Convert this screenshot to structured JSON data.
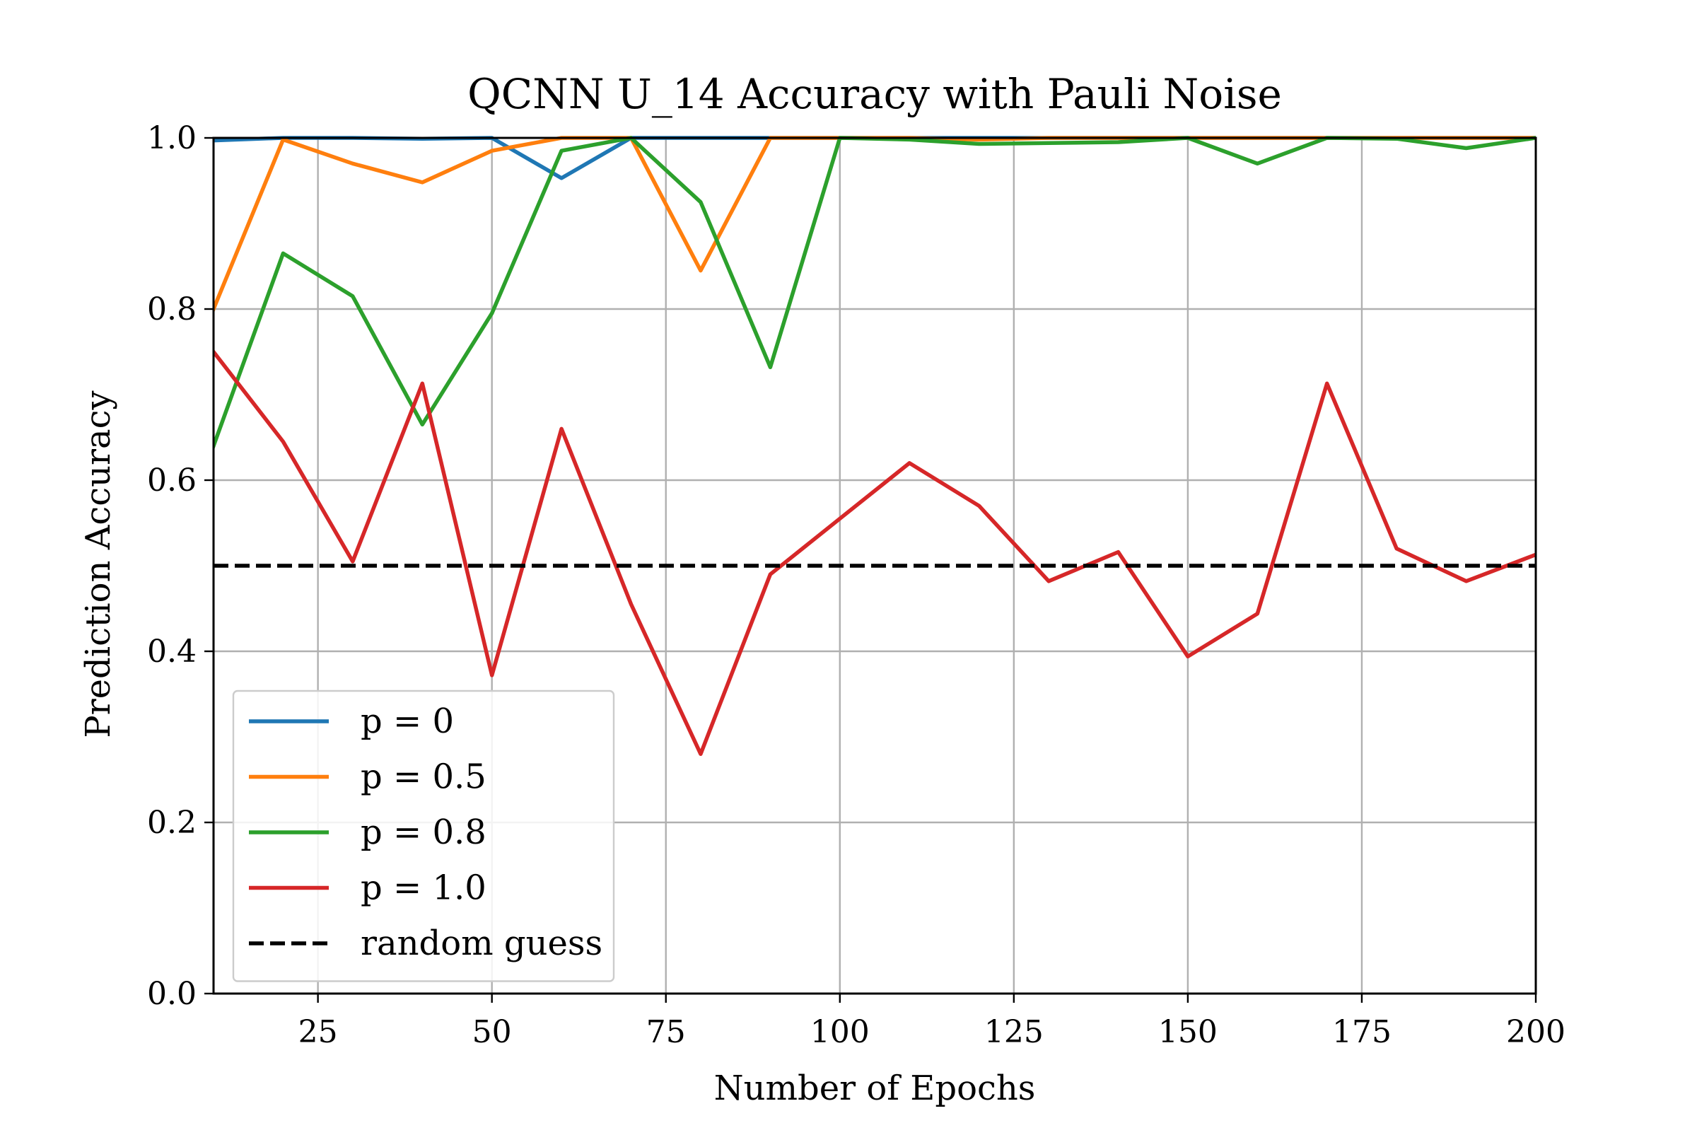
{
  "chart_data": {
    "type": "line",
    "title": "QCNN U_14 Accuracy with Pauli Noise",
    "xlabel": "Number of Epochs",
    "ylabel": "Prediction Accuracy",
    "xlim": [
      10,
      200
    ],
    "ylim": [
      0.0,
      1.0
    ],
    "x_ticks": [
      25,
      50,
      75,
      100,
      125,
      150,
      175,
      200
    ],
    "x_tick_labels": [
      "25",
      "50",
      "75",
      "100",
      "125",
      "150",
      "175",
      "200"
    ],
    "y_ticks": [
      0.0,
      0.2,
      0.4,
      0.6,
      0.8,
      1.0
    ],
    "y_tick_labels": [
      "0.0",
      "0.2",
      "0.4",
      "0.6",
      "0.8",
      "1.0"
    ],
    "grid": true,
    "legend_position": "lower-left",
    "x": [
      10,
      20,
      30,
      40,
      50,
      60,
      70,
      80,
      90,
      100,
      110,
      120,
      130,
      140,
      150,
      160,
      170,
      180,
      190,
      200
    ],
    "series": [
      {
        "name": "p = 0",
        "color": "#1f77b4",
        "dash": "solid",
        "values": [
          0.997,
          1.0,
          1.0,
          0.999,
          1.0,
          0.953,
          1.0,
          1.0,
          1.0,
          1.0,
          1.0,
          1.0,
          1.0,
          1.0,
          1.0,
          1.0,
          1.0,
          1.0,
          1.0,
          1.0
        ]
      },
      {
        "name": "p = 0.5",
        "color": "#ff7f0e",
        "dash": "solid",
        "values": [
          0.8,
          0.998,
          0.97,
          0.948,
          0.985,
          1.0,
          1.0,
          0.845,
          1.0,
          1.0,
          1.0,
          0.998,
          1.0,
          1.0,
          1.0,
          1.0,
          1.0,
          1.0,
          1.0,
          1.0
        ]
      },
      {
        "name": "p = 0.8",
        "color": "#2ca02c",
        "dash": "solid",
        "values": [
          0.64,
          0.865,
          0.815,
          0.665,
          0.795,
          0.985,
          1.0,
          0.925,
          0.732,
          1.0,
          0.998,
          0.993,
          0.994,
          0.995,
          1.0,
          0.97,
          1.0,
          0.999,
          0.988,
          1.0
        ]
      },
      {
        "name": "p = 1.0",
        "color": "#d62728",
        "dash": "solid",
        "values": [
          0.75,
          0.645,
          0.505,
          0.713,
          0.372,
          0.66,
          0.455,
          0.28,
          0.49,
          0.555,
          0.62,
          0.57,
          0.482,
          0.516,
          0.394,
          0.444,
          0.713,
          0.52,
          0.482,
          0.513
        ]
      }
    ],
    "reference_lines": [
      {
        "name": "random guess",
        "y": 0.5,
        "color": "#000000",
        "dash": "dashed"
      }
    ]
  }
}
